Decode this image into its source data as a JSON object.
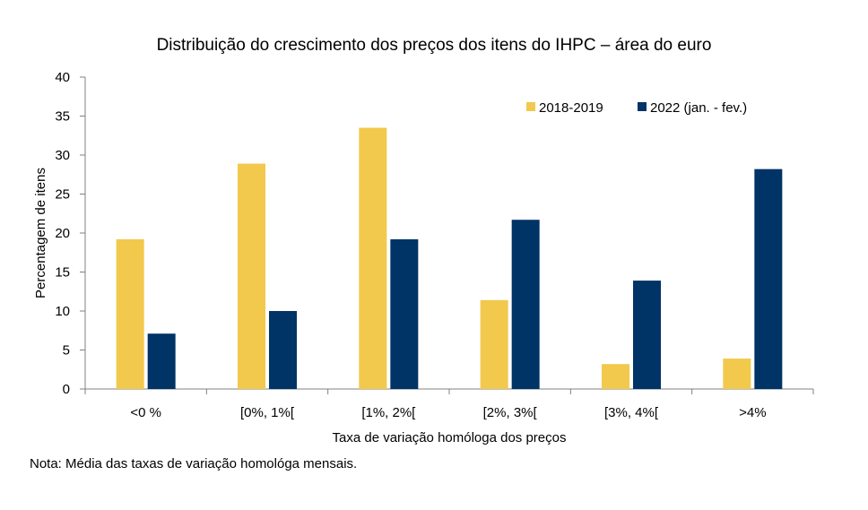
{
  "chart_data": {
    "type": "bar",
    "title": "Distribuição do crescimento dos preços dos itens do IHPC – área do euro",
    "xlabel": "Taxa de variação homóloga dos preços",
    "ylabel": "Percentagem de itens",
    "categories": [
      "<0 %",
      "[0%, 1%[",
      "[1%, 2%[",
      "[2%, 3%[",
      "[3%, 4%[",
      ">4%"
    ],
    "ylim": [
      0,
      40
    ],
    "yticks": [
      0,
      5,
      10,
      15,
      20,
      25,
      30,
      35,
      40
    ],
    "grid": false,
    "legend_position": "top-right",
    "series": [
      {
        "name": "2018-2019",
        "color": "#F2C94C",
        "values": [
          19.2,
          28.9,
          33.5,
          11.4,
          3.2,
          3.9
        ]
      },
      {
        "name": "2022 (jan. - fev.)",
        "color": "#003366",
        "values": [
          7.1,
          10.0,
          19.2,
          21.7,
          13.9,
          28.2
        ]
      }
    ]
  },
  "note": "Nota: Média das taxas de variação homológa mensais."
}
